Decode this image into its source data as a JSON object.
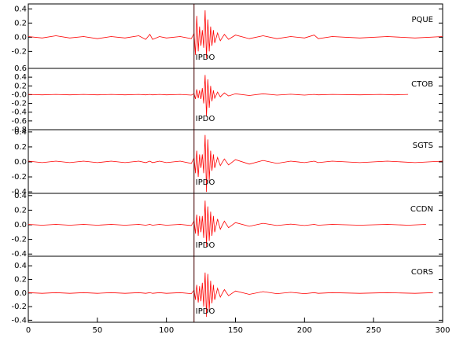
{
  "chart_data": [
    {
      "type": "line",
      "annotations": [
        "PQUE",
        "IPDO"
      ],
      "pick_x": 120,
      "color": "#ff0000",
      "xlim": [
        0,
        300
      ],
      "ylim": [
        -0.44,
        0.47
      ],
      "yticks": [
        {
          "value": -0.2,
          "label": "-0.2"
        },
        {
          "value": 0,
          "label": "0.0"
        },
        {
          "value": 0.2,
          "label": "0.2"
        },
        {
          "value": 0.4,
          "label": "0.4"
        }
      ],
      "x": [
        0,
        10,
        20,
        30,
        40,
        50,
        60,
        70,
        80,
        85,
        88,
        90,
        95,
        100,
        110,
        118,
        120,
        121,
        122,
        123,
        124,
        125,
        126,
        127,
        128,
        129,
        130,
        131,
        132,
        133,
        134,
        135,
        137,
        139,
        142,
        145,
        150,
        160,
        170,
        180,
        190,
        200,
        207,
        210,
        220,
        240,
        260,
        280,
        300
      ],
      "values": [
        0.01,
        -0.01,
        0.02,
        -0.01,
        0.01,
        -0.02,
        0.01,
        -0.01,
        0.02,
        -0.03,
        0.04,
        -0.03,
        0.01,
        -0.01,
        0.01,
        -0.02,
        0.05,
        -0.25,
        0.3,
        -0.2,
        0.15,
        -0.12,
        0.1,
        -0.15,
        0.38,
        -0.3,
        0.25,
        -0.2,
        0.15,
        -0.12,
        0.1,
        -0.08,
        0.06,
        -0.05,
        0.04,
        -0.03,
        0.03,
        -0.02,
        0.02,
        -0.02,
        0.01,
        -0.01,
        0.03,
        -0.02,
        0.01,
        -0.01,
        0.01,
        -0.01,
        0.01
      ]
    },
    {
      "type": "line",
      "annotations": [
        "CTOB",
        "IPDO"
      ],
      "pick_x": 120,
      "color": "#ff0000",
      "xlim": [
        0,
        300
      ],
      "ylim": [
        -0.8,
        0.6
      ],
      "yticks": [
        {
          "value": -0.8,
          "label": "-0.8"
        },
        {
          "value": -0.6,
          "label": "-0.6"
        },
        {
          "value": -0.4,
          "label": "-0.4"
        },
        {
          "value": -0.2,
          "label": "-0.2"
        },
        {
          "value": 0,
          "label": "-0.0"
        },
        {
          "value": 0.2,
          "label": "0.2"
        },
        {
          "value": 0.4,
          "label": "0.4"
        },
        {
          "value": 0.6,
          "label": "0.6"
        }
      ],
      "x": [
        0,
        10,
        20,
        30,
        40,
        50,
        60,
        70,
        80,
        85,
        88,
        90,
        95,
        100,
        110,
        118,
        120,
        121,
        122,
        123,
        124,
        125,
        126,
        127,
        128,
        129,
        130,
        131,
        132,
        133,
        134,
        135,
        137,
        139,
        142,
        145,
        150,
        160,
        170,
        180,
        190,
        200,
        207,
        210,
        220,
        240,
        255,
        265,
        275
      ],
      "values": [
        0.005,
        -0.005,
        0.005,
        -0.005,
        0.005,
        -0.005,
        0.005,
        -0.005,
        0.005,
        -0.005,
        0.005,
        -0.005,
        0.005,
        -0.005,
        0.005,
        -0.01,
        0.02,
        -0.1,
        0.12,
        -0.08,
        0.1,
        -0.1,
        0.15,
        -0.2,
        0.45,
        -0.5,
        0.35,
        -0.3,
        0.2,
        -0.15,
        0.1,
        -0.08,
        0.06,
        -0.05,
        0.04,
        -0.03,
        0.02,
        -0.02,
        0.02,
        -0.01,
        0.01,
        -0.01,
        0.005,
        -0.005,
        0.005,
        -0.005,
        0.005,
        -0.005,
        0.005
      ]
    },
    {
      "type": "line",
      "annotations": [
        "SGTS",
        "IPDO"
      ],
      "pick_x": 120,
      "color": "#ff0000",
      "xlim": [
        0,
        300
      ],
      "ylim": [
        -0.42,
        0.43
      ],
      "yticks": [
        {
          "value": -0.4,
          "label": "-0.4"
        },
        {
          "value": -0.2,
          "label": "-0.2"
        },
        {
          "value": 0,
          "label": "0.0"
        },
        {
          "value": 0.2,
          "label": "0.2"
        },
        {
          "value": 0.4,
          "label": "0.4"
        }
      ],
      "x": [
        0,
        10,
        20,
        30,
        40,
        50,
        60,
        70,
        80,
        85,
        88,
        90,
        95,
        100,
        110,
        118,
        120,
        121,
        122,
        123,
        124,
        125,
        126,
        127,
        128,
        129,
        130,
        131,
        132,
        133,
        134,
        135,
        137,
        139,
        142,
        145,
        150,
        160,
        170,
        180,
        190,
        200,
        207,
        210,
        220,
        240,
        260,
        280,
        300
      ],
      "values": [
        0.01,
        -0.01,
        0.01,
        -0.01,
        0.01,
        -0.01,
        0.01,
        -0.01,
        0.01,
        -0.01,
        0.01,
        -0.01,
        0.01,
        -0.01,
        0.01,
        -0.02,
        0.05,
        -0.15,
        0.15,
        -0.2,
        0.1,
        -0.08,
        0.1,
        -0.15,
        0.36,
        -0.4,
        0.3,
        -0.25,
        0.15,
        -0.12,
        0.1,
        -0.08,
        0.06,
        -0.05,
        0.04,
        -0.04,
        0.03,
        -0.03,
        0.02,
        -0.02,
        0.01,
        -0.01,
        0.01,
        -0.01,
        0.01,
        -0.01,
        0.01,
        -0.01,
        0.01
      ]
    },
    {
      "type": "line",
      "annotations": [
        "CCDN",
        "IPDO"
      ],
      "pick_x": 120,
      "color": "#ff0000",
      "xlim": [
        0,
        300
      ],
      "ylim": [
        -0.43,
        0.43
      ],
      "yticks": [
        {
          "value": -0.4,
          "label": "-0.4"
        },
        {
          "value": -0.2,
          "label": "-0.2"
        },
        {
          "value": 0,
          "label": "0.0"
        },
        {
          "value": 0.2,
          "label": "0.2"
        },
        {
          "value": 0.4,
          "label": "0.4"
        }
      ],
      "x": [
        0,
        10,
        20,
        30,
        40,
        50,
        60,
        70,
        80,
        85,
        88,
        90,
        95,
        100,
        110,
        118,
        120,
        121,
        122,
        123,
        124,
        125,
        126,
        127,
        128,
        129,
        130,
        131,
        132,
        133,
        134,
        135,
        137,
        139,
        142,
        145,
        150,
        160,
        170,
        180,
        190,
        200,
        207,
        210,
        220,
        240,
        260,
        275,
        288
      ],
      "values": [
        0.005,
        -0.005,
        0.005,
        -0.005,
        0.005,
        -0.005,
        0.005,
        -0.005,
        0.005,
        -0.005,
        0.005,
        -0.005,
        0.005,
        -0.005,
        0.005,
        -0.01,
        0.05,
        -0.12,
        0.14,
        -0.15,
        0.12,
        -0.1,
        0.12,
        -0.18,
        0.33,
        -0.3,
        0.25,
        -0.22,
        0.18,
        -0.15,
        0.12,
        -0.1,
        0.08,
        -0.06,
        0.05,
        -0.04,
        0.03,
        -0.02,
        0.02,
        -0.01,
        0.01,
        -0.01,
        0.005,
        -0.005,
        0.005,
        -0.005,
        0.005,
        -0.005,
        0.005
      ]
    },
    {
      "type": "line",
      "annotations": [
        "CORS",
        "IPDO"
      ],
      "pick_x": 120,
      "color": "#ff0000",
      "xlim": [
        0,
        300
      ],
      "ylim": [
        -0.43,
        0.54
      ],
      "yticks": [
        {
          "value": -0.4,
          "label": "-0.4"
        },
        {
          "value": -0.2,
          "label": "-0.2"
        },
        {
          "value": 0,
          "label": "0.0"
        },
        {
          "value": 0.2,
          "label": "0.2"
        },
        {
          "value": 0.4,
          "label": "0.4"
        }
      ],
      "xticks": [
        0,
        50,
        100,
        150,
        200,
        250,
        300
      ],
      "x": [
        0,
        10,
        20,
        30,
        40,
        50,
        60,
        70,
        80,
        85,
        88,
        90,
        95,
        100,
        110,
        118,
        120,
        121,
        122,
        123,
        124,
        125,
        126,
        127,
        128,
        129,
        130,
        131,
        132,
        133,
        134,
        135,
        137,
        139,
        142,
        145,
        150,
        160,
        170,
        180,
        190,
        200,
        207,
        210,
        220,
        240,
        260,
        280,
        293
      ],
      "values": [
        0.005,
        -0.005,
        0.005,
        -0.005,
        0.005,
        -0.005,
        0.005,
        -0.005,
        0.005,
        -0.005,
        0.005,
        -0.005,
        0.005,
        -0.005,
        0.005,
        -0.01,
        0.04,
        -0.1,
        0.12,
        -0.14,
        0.1,
        -0.12,
        0.15,
        -0.2,
        0.3,
        -0.35,
        0.28,
        -0.25,
        0.18,
        -0.15,
        0.12,
        -0.1,
        0.07,
        -0.06,
        0.05,
        -0.04,
        0.03,
        -0.02,
        0.02,
        -0.01,
        0.01,
        -0.01,
        0.005,
        -0.005,
        0.005,
        -0.005,
        0.005,
        -0.005,
        0.005
      ]
    }
  ]
}
